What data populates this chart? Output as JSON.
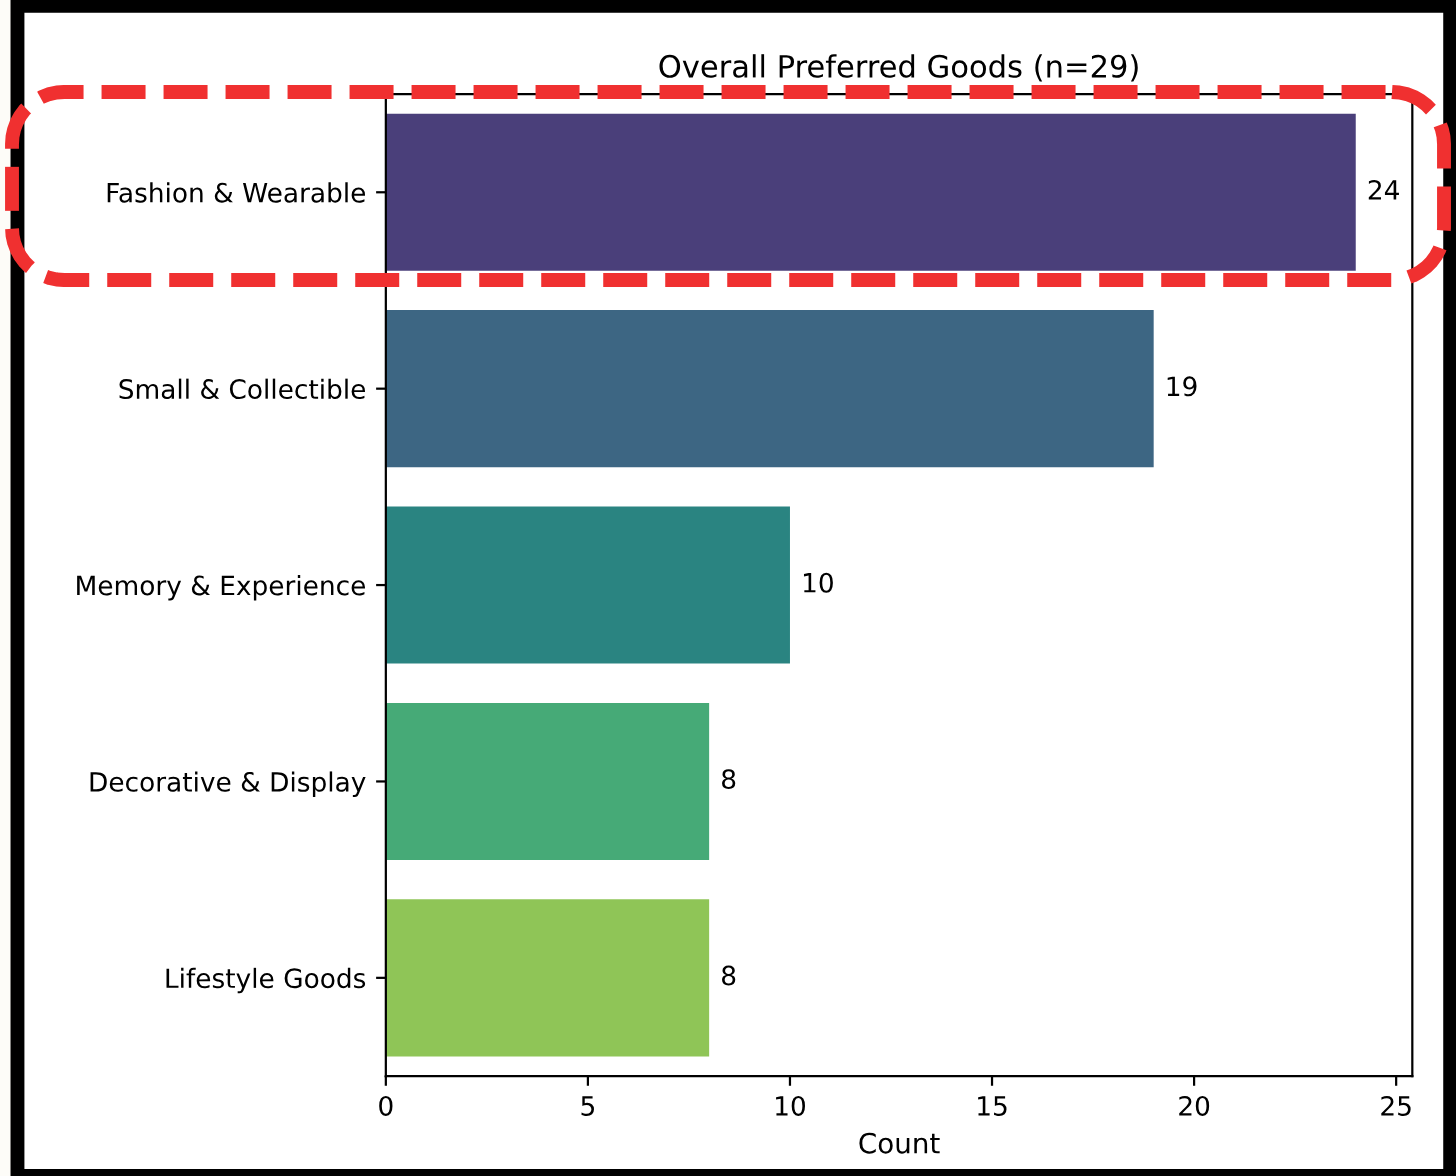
{
  "chart_data": {
    "type": "bar",
    "orientation": "horizontal",
    "title": "Overall Preferred Goods (n=29)",
    "xlabel": "Count",
    "categories": [
      "Fashion & Wearable",
      "Small & Collectible",
      "Memory & Experience",
      "Decorative & Display",
      "Lifestyle Goods"
    ],
    "values": [
      24,
      19,
      10,
      8,
      8
    ],
    "colors": [
      "#4a3f7a",
      "#3d6683",
      "#2a8481",
      "#46aa77",
      "#8fc557"
    ],
    "xlim": [
      0,
      25.4
    ],
    "xticks": [
      0,
      5,
      10,
      15,
      20,
      25
    ],
    "data_labels": true,
    "grid": false,
    "legend": false
  }
}
